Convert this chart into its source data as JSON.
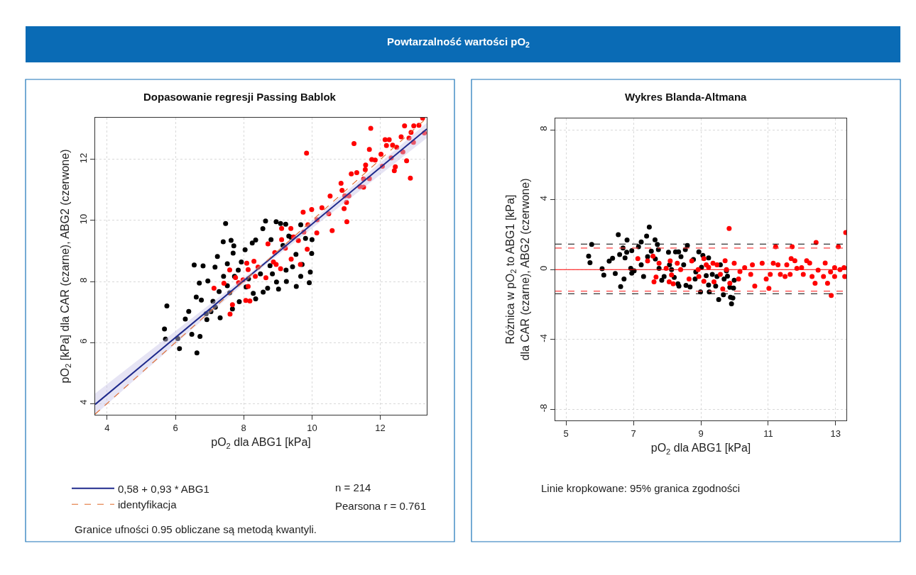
{
  "chart_data": [
    {
      "type": "scatter",
      "title": "Dopasowanie regresji Passing Bablok",
      "xlabel": "pO$_{2}$ dla ABG1 [kPa]",
      "ylabel": "pO$_{2}$ [kPa] dla CAR (czarne), ABG2 (czerwone)",
      "annotations": [
        "Powtarzalność wartości pO$_{2}$",
        "n = 214",
        "Pearsona r = 0.761",
        "Granice ufności 0.95 obliczane są metodą kwantyli."
      ],
      "xlim": [
        3.65,
        13.36
      ],
      "ylim": [
        3.63,
        13.37
      ],
      "xticks": [
        4,
        6,
        8,
        10,
        12
      ],
      "yticks": [
        4,
        6,
        8,
        10,
        12
      ],
      "grid": true,
      "legend": "bottom",
      "marker": "circle",
      "series": [
        {
          "color": "#000000",
          "x": [
            5.68,
            5.75,
            5.71,
            6.07,
            6.12,
            6.63,
            6.72,
            6.39,
            6.29,
            6.48,
            6.55,
            6.81,
            6.7,
            6.95,
            6.61,
            6.76,
            6.9,
            6.92,
            7.1,
            7.16,
            7.23,
            7.31,
            7.4,
            7.47,
            7.41,
            7.52,
            7.63,
            7.71,
            7.69,
            7.59,
            7.67,
            7.87,
            7.84,
            7.93,
            8.04,
            8.07,
            8.28,
            8.35,
            8.25,
            8.35,
            8.56,
            8.64,
            8.57,
            8.7,
            8.8,
            8.84,
            8.96,
            9.02,
            8.95,
            9.08,
            9.23,
            9.25,
            9.24,
            9.32,
            9.43,
            9.54,
            9.53,
            9.67,
            9.71,
            9.81,
            9.92,
            9.95,
            10.0,
            9.99,
            9.67,
            9.39,
            9.15,
            8.77,
            8.49,
            8.14,
            7.73,
            7.52,
            7.28,
            7.17,
            7.04
          ],
          "values": [
            6.44,
            7.2,
            6.11,
            6.13,
            5.8,
            5.66,
            6.2,
            7.02,
            6.77,
            6.27,
            8.54,
            8.51,
            7.95,
            8.02,
            7.49,
            7.39,
            6.94,
            6.75,
            7.35,
            8.47,
            8.82,
            6.81,
            9.3,
            9.9,
            8.17,
            8.58,
            9.35,
            9.17,
            8.93,
            7.63,
            7.1,
            7.34,
            8.37,
            8.64,
            9.04,
            7.82,
            7.61,
            7.43,
            9.26,
            9.36,
            9.73,
            9.98,
            7.65,
            7.78,
            9.37,
            8.25,
            7.98,
            7.75,
            9.96,
            9.9,
            9.88,
            8.0,
            8.37,
            9.49,
            8.48,
            7.84,
            8.89,
            8.17,
            8.56,
            9.41,
            7.96,
            8.31,
            9.37,
            8.92,
            9.86,
            9.45,
            9.18,
            8.52,
            8.25,
            8.09,
            8.17,
            7.86,
            7.67,
            7.16,
            7.01
          ]
        },
        {
          "color": "#ff0000",
          "x": [
            7.13,
            7.42,
            7.59,
            7.67,
            7.6,
            7.76,
            7.85,
            7.98,
            8.09,
            8.13,
            8.13,
            8.06,
            8.18,
            8.3,
            8.34,
            8.42,
            8.65,
            8.71,
            8.91,
            8.87,
            8.95,
            9.08,
            9.11,
            9.11,
            9.22,
            9.38,
            9.39,
            9.46,
            9.6,
            9.66,
            9.74,
            9.76,
            9.86,
            9.84,
            9.88,
            9.99,
            10.14,
            10.15,
            10.29,
            10.49,
            10.53,
            10.59,
            10.85,
            10.88,
            10.96,
            11.01,
            11.02,
            10.94,
            11.08,
            11.15,
            11.23,
            11.31,
            11.4,
            11.51,
            11.51,
            11.57,
            11.56,
            11.68,
            11.72,
            11.68,
            11.75,
            11.85,
            12.02,
            12.06,
            12.14,
            12.26,
            12.18,
            12.32,
            12.36,
            12.41,
            12.44,
            12.48,
            12.61,
            12.66,
            12.71,
            12.77,
            12.84,
            12.88,
            12.9,
            12.97,
            12.98,
            13.13,
            13.24,
            13.29
          ],
          "values": [
            7.78,
            7.94,
            8.38,
            7.24,
            6.93,
            8.13,
            7.96,
            8.05,
            8.6,
            8.39,
            7.84,
            7.38,
            7.36,
            8.66,
            8.17,
            8.47,
            8.12,
            9.23,
            8.95,
            8.64,
            8.56,
            8.42,
            9.74,
            9.37,
            9.09,
            9.74,
            8.73,
            9.46,
            9.34,
            8.56,
            10.27,
            9.62,
            9.06,
            12.21,
            9.86,
            10.36,
            9.59,
            10.02,
            10.42,
            10.22,
            10.8,
            9.67,
            11.22,
            10.99,
            10.81,
            10.59,
            9.96,
            10.39,
            10.81,
            11.53,
            12.52,
            11.57,
            11.11,
            11.09,
            11.36,
            11.82,
            11.67,
            11.37,
            13.02,
            12.33,
            12.0,
            11.98,
            12.17,
            11.78,
            12.65,
            12.65,
            12.46,
            12.05,
            12.47,
            11.63,
            11.76,
            12.4,
            12.74,
            12.25,
            13.1,
            11.96,
            12.7,
            11.39,
            12.89,
            12.56,
            13.1,
            13.12,
            13.36,
            12.87
          ]
        },
        {
          "type": "line",
          "name": "0,58 + 0,93 * ABG1",
          "color": "#1f2a8c",
          "marker": "none",
          "x": [
            3.65,
            8.5,
            13.36
          ],
          "values": [
            3.97,
            8.49,
            13.0
          ],
          "lower": [
            3.63,
            8.42,
            12.7
          ],
          "upper": [
            4.33,
            8.55,
            13.2
          ]
        },
        {
          "type": "line",
          "name": "identyfikacja",
          "color": "#e0692a",
          "line_style": "dashed",
          "marker": "none",
          "x": [
            3.65,
            13.36
          ],
          "values": [
            3.65,
            13.36
          ]
        }
      ]
    },
    {
      "type": "scatter",
      "title": "Wykres Blanda-Altmana",
      "xlabel": "pO$_{2}$ dla ABG1 [kPa]",
      "ylabel": "Różnica w pO$_{2}$ to ABG1 [kPa]\ndla CAR (czarne), ABG2 (czerwone)",
      "annotations": [
        "Linie kropkowane: 95% granica zgodności"
      ],
      "xlim": [
        4.68,
        13.32
      ],
      "ylim": [
        -8.63,
        8.65
      ],
      "xticks": [
        5,
        7,
        9,
        11,
        13
      ],
      "yticks": [
        -8,
        -4,
        0,
        4,
        8
      ],
      "grid": true,
      "marker": "circle",
      "ref_lines": [
        {
          "axis": "y",
          "value": 0,
          "color": "#ff0000",
          "line_style": "solid"
        },
        {
          "axis": "y",
          "value": 1.46,
          "color": "#000000",
          "line_style": "dashed"
        },
        {
          "axis": "y",
          "value": -1.38,
          "color": "#000000",
          "line_style": "dashed"
        },
        {
          "axis": "y",
          "value": 1.23,
          "color": "#ff4040",
          "line_style": "dashed"
        },
        {
          "axis": "y",
          "value": -1.23,
          "color": "#ff4040",
          "line_style": "dashed"
        }
      ],
      "series": [
        {
          "color": "#000000",
          "x": [
            5.67,
            5.71,
            5.76,
            6.07,
            6.12,
            6.28,
            6.38,
            6.46,
            6.55,
            6.59,
            6.62,
            6.69,
            6.72,
            6.75,
            6.8,
            6.81,
            6.92,
            6.95,
            6.95,
            7.15,
            7.23,
            7.3,
            7.39,
            7.42,
            7.47,
            7.53,
            7.64,
            7.71,
            7.74,
            7.76,
            7.84,
            7.91,
            8.04,
            8.13,
            8.21,
            8.25,
            8.34,
            8.32,
            8.35,
            8.41,
            8.49,
            8.54,
            8.6,
            8.56,
            8.68,
            8.78,
            8.83,
            8.94,
            8.99,
            9.02,
            9.06,
            9.16,
            9.23,
            9.25,
            9.23,
            9.34,
            9.44,
            9.53,
            9.58,
            9.67,
            9.69,
            9.79,
            9.86,
            9.88,
            9.91,
            9.95,
            9.97,
            9.99,
            9.76,
            9.48,
            8.85,
            8.07,
            7.65,
            7.23,
            7.02
          ],
          "values": [
            0.77,
            0.4,
            1.44,
            0.05,
            -0.31,
            0.49,
            0.65,
            -0.22,
            2.0,
            0.86,
            -0.97,
            1.24,
            -0.54,
            0.67,
            0.99,
            1.69,
            0.07,
            1.08,
            -0.2,
            1.31,
            1.58,
            -0.4,
            1.92,
            0.74,
            2.43,
            1.05,
            1.7,
            1.44,
            1.15,
            0.07,
            -0.61,
            -0.4,
            0.99,
            0.0,
            -0.45,
            1.01,
            1.01,
            -0.81,
            -0.94,
            0.74,
            0.27,
            1.15,
            1.38,
            -0.9,
            -0.99,
            0.58,
            -0.54,
            1.01,
            -1.28,
            0.13,
            0.81,
            -0.34,
            0.67,
            -1.28,
            -0.88,
            -0.27,
            -0.94,
            -1.71,
            0.27,
            -1.44,
            -0.54,
            -0.38,
            -1.01,
            -1.58,
            -1.96,
            -1.62,
            -1.05,
            -0.61,
            -0.07,
            -0.4,
            -0.13,
            0.27,
            0.61,
            0.27,
            -0.07
          ]
        },
        {
          "color": "#ff0000",
          "x": [
            7.13,
            7.42,
            7.58,
            7.61,
            7.67,
            7.76,
            7.97,
            8.09,
            8.06,
            8.13,
            8.18,
            8.3,
            8.4,
            8.65,
            8.73,
            8.92,
            8.94,
            9.09,
            9.09,
            9.16,
            9.23,
            9.36,
            9.39,
            9.48,
            9.58,
            9.65,
            9.72,
            9.76,
            9.84,
            9.86,
            9.99,
            10.12,
            10.16,
            10.3,
            10.48,
            10.53,
            10.6,
            10.82,
            10.94,
            11.02,
            11.06,
            11.15,
            11.22,
            11.29,
            11.36,
            11.5,
            11.55,
            11.65,
            11.68,
            11.71,
            11.79,
            11.85,
            11.99,
            12.04,
            12.14,
            12.23,
            12.3,
            12.39,
            12.42,
            12.48,
            12.64,
            12.69,
            12.76,
            12.85,
            12.87,
            12.97,
            12.97,
            13.08,
            13.13,
            13.25,
            13.27,
            13.3
          ],
          "values": [
            0.63,
            0.5,
            0.77,
            -0.7,
            -0.43,
            0.36,
            0.07,
            0.5,
            -0.7,
            -0.3,
            -0.81,
            0.36,
            0.0,
            -0.54,
            0.5,
            0.0,
            -0.4,
            0.63,
            -0.67,
            0.27,
            0.13,
            0.36,
            -0.7,
            0.27,
            -0.27,
            -1.11,
            0.51,
            0.0,
            2.35,
            -0.78,
            0.36,
            -0.54,
            -0.11,
            0.11,
            -0.27,
            0.27,
            -0.94,
            0.36,
            -0.54,
            -1.08,
            -0.27,
            0.36,
            1.31,
            0.27,
            -0.27,
            -0.4,
            0.27,
            -0.27,
            0.63,
            1.31,
            0.51,
            0.07,
            0.11,
            -0.27,
            0.51,
            0.38,
            -0.4,
            -0.78,
            1.55,
            -0.03,
            -0.4,
            0.38,
            -0.78,
            -0.13,
            -1.48,
            0.11,
            -0.4,
            1.31,
            0.0,
            0.11,
            -0.4,
            2.12
          ]
        }
      ]
    }
  ]
}
